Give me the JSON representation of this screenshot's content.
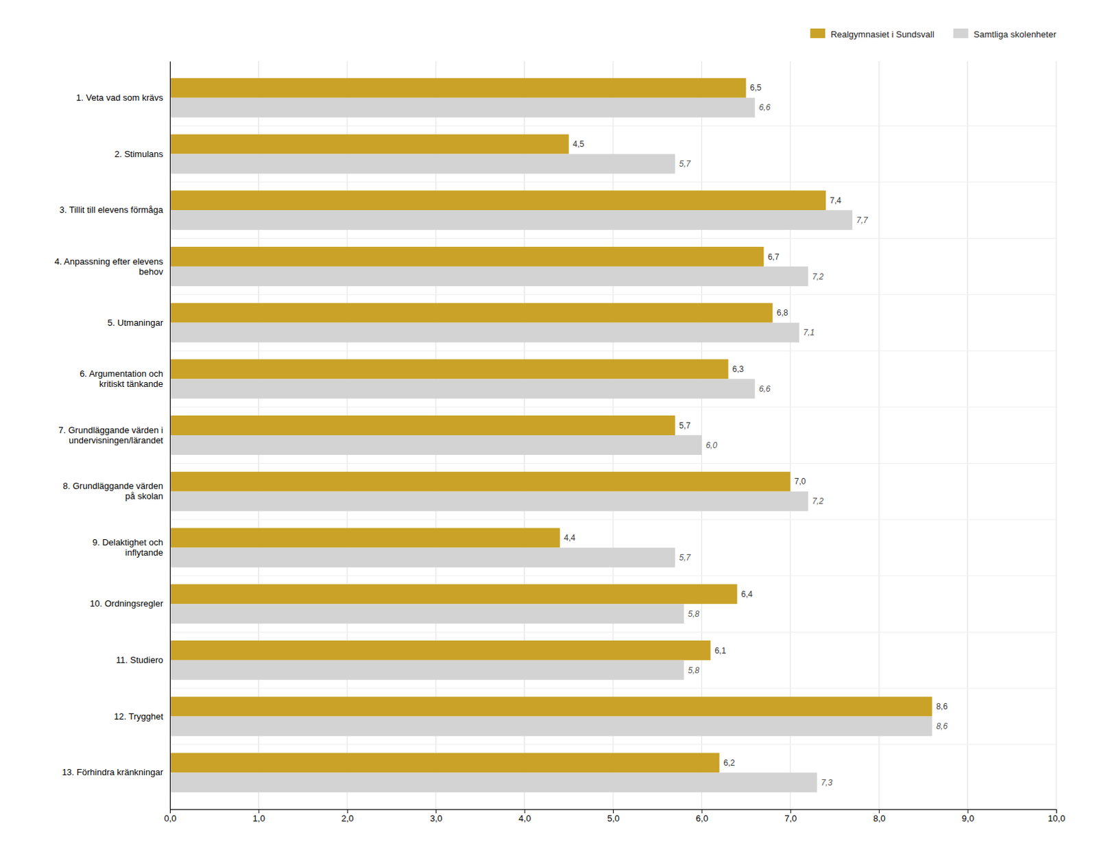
{
  "chart_data": {
    "type": "bar",
    "orientation": "horizontal",
    "categories": [
      "13. Förhindra kränkningar",
      "12. Trygghet",
      "11. Studiero",
      "10. Ordningsregler",
      "9. Delaktighet och\ninflytande",
      "8. Grundläggande värden\npå skolan",
      "7. Grundläggande värden i\nundervisningen/lärandet",
      "6. Argumentation och\nkritiskt tänkande",
      "5. Utmaningar",
      "4. Anpassning efter elevens\nbehov",
      "3. Tillit till elevens förmåga",
      "2. Stimulans",
      "1. Veta vad som krävs"
    ],
    "series": [
      {
        "name": "Realgymnasiet i Sundsvall",
        "color": "#C9A227",
        "values": [
          6.2,
          8.6,
          6.1,
          6.4,
          4.4,
          7.0,
          5.7,
          6.3,
          6.8,
          6.7,
          7.4,
          4.5,
          6.5
        ],
        "value_labels": [
          "6,2",
          "8,6",
          "6,1",
          "6,4",
          "4,4",
          "7,0",
          "5,7",
          "6,3",
          "6,8",
          "6,7",
          "7,4",
          "4,5",
          "6,5"
        ]
      },
      {
        "name": "Samtliga skolenheter",
        "color": "#D3D3D3",
        "values": [
          7.3,
          8.6,
          5.8,
          5.8,
          5.7,
          7.2,
          6.0,
          6.6,
          7.1,
          7.2,
          7.7,
          5.7,
          6.6
        ],
        "value_labels": [
          "7,3",
          "8,6",
          "5,8",
          "5,8",
          "5,7",
          "7,2",
          "6,0",
          "6,6",
          "7,1",
          "7,2",
          "7,7",
          "5,7",
          "6,6"
        ]
      }
    ],
    "xlim": [
      0,
      10
    ],
    "xticks": [
      {
        "value": 0,
        "label": "0,0"
      },
      {
        "value": 1,
        "label": "1,0"
      },
      {
        "value": 2,
        "label": "2,0"
      },
      {
        "value": 3,
        "label": "3,0"
      },
      {
        "value": 4,
        "label": "4,0"
      },
      {
        "value": 5,
        "label": "5,0"
      },
      {
        "value": 6,
        "label": "6,0"
      },
      {
        "value": 7,
        "label": "7,0"
      },
      {
        "value": 8,
        "label": "8,0"
      },
      {
        "value": 9,
        "label": "9,0"
      },
      {
        "value": 10,
        "label": "10,0"
      }
    ],
    "grid": true,
    "data_labels": true,
    "legend": "upper right"
  }
}
